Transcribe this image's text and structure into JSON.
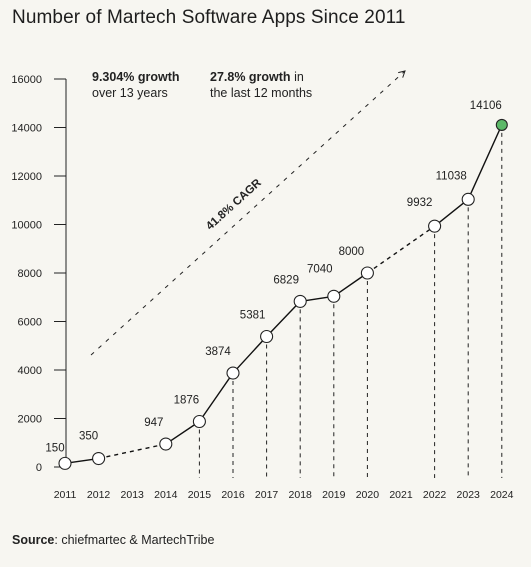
{
  "title": "Number of Martech Software Apps Since 2011",
  "annotations": {
    "growth_13y_bold": "9.304% growth",
    "growth_13y_rest": "over 13 years",
    "growth_12m_bold": "27.8% growth",
    "growth_12m_rest1": "in",
    "growth_12m_rest2": "the last 12 months",
    "cagr_label": "41.8% CAGR"
  },
  "source": {
    "label": "Source",
    "text": ": chiefmartec & MartechTribe"
  },
  "colors": {
    "background": "#f7f6f1",
    "line": "#111111",
    "marker_fill": "#ffffff",
    "highlight_marker": "#5cb868"
  },
  "chart_data": {
    "type": "line",
    "title": "Number of Martech Software Apps Since 2011",
    "xlabel": "",
    "ylabel": "",
    "ylim": [
      0,
      16000
    ],
    "yticks": [
      0,
      2000,
      4000,
      6000,
      8000,
      10000,
      12000,
      14000,
      16000
    ],
    "x_ticks": [
      "2011",
      "2012",
      "2013",
      "2014",
      "2015",
      "2016",
      "2017",
      "2018",
      "2019",
      "2020",
      "2021",
      "2022",
      "2023",
      "2024"
    ],
    "points": [
      {
        "x": 2011,
        "y": 150
      },
      {
        "x": 2012,
        "y": 350
      },
      {
        "x": 2014,
        "y": 947
      },
      {
        "x": 2015,
        "y": 1876
      },
      {
        "x": 2016,
        "y": 3874
      },
      {
        "x": 2017,
        "y": 5381
      },
      {
        "x": 2018,
        "y": 6829
      },
      {
        "x": 2019,
        "y": 7040
      },
      {
        "x": 2020,
        "y": 8000
      },
      {
        "x": 2022,
        "y": 9932
      },
      {
        "x": 2023,
        "y": 11038
      },
      {
        "x": 2024,
        "y": 14106
      }
    ],
    "highlight": {
      "x": 2024,
      "y": 14106
    },
    "gridlines": false,
    "legend": "none"
  }
}
